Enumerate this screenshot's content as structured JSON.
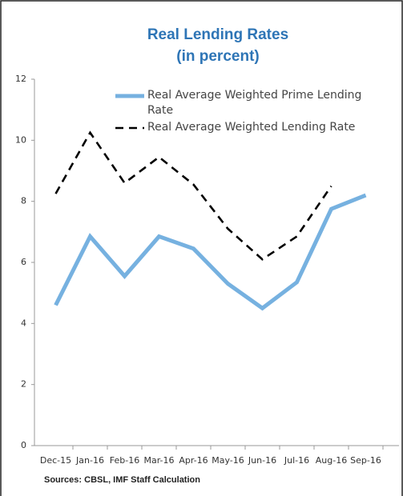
{
  "chart_data": {
    "type": "line",
    "title": "Real Lending Rates",
    "subtitle": "(in percent)",
    "categories": [
      "Dec-15",
      "Jan-16",
      "Feb-16",
      "Mar-16",
      "Apr-16",
      "May-16",
      "Jun-16",
      "Jul-16",
      "Aug-16",
      "Sep-16"
    ],
    "series": [
      {
        "name": "Real Average Weighted Prime Lending Rate",
        "color": "#76b1e0",
        "dash": false,
        "values": [
          4.6,
          6.85,
          5.55,
          6.85,
          6.45,
          5.3,
          4.5,
          5.35,
          7.75,
          8.2
        ]
      },
      {
        "name": "Real Average Weighted Lending Rate",
        "color": "#000000",
        "dash": true,
        "values": [
          8.25,
          10.25,
          8.6,
          9.45,
          8.55,
          7.1,
          6.1,
          6.85,
          8.5,
          null
        ]
      }
    ],
    "ylim": [
      0,
      12
    ],
    "yticks": [
      0,
      2,
      4,
      6,
      8,
      10,
      12
    ],
    "grid": false,
    "legend": "upper-right",
    "source": "Sources: CBSL, IMF Staff Calculation"
  }
}
